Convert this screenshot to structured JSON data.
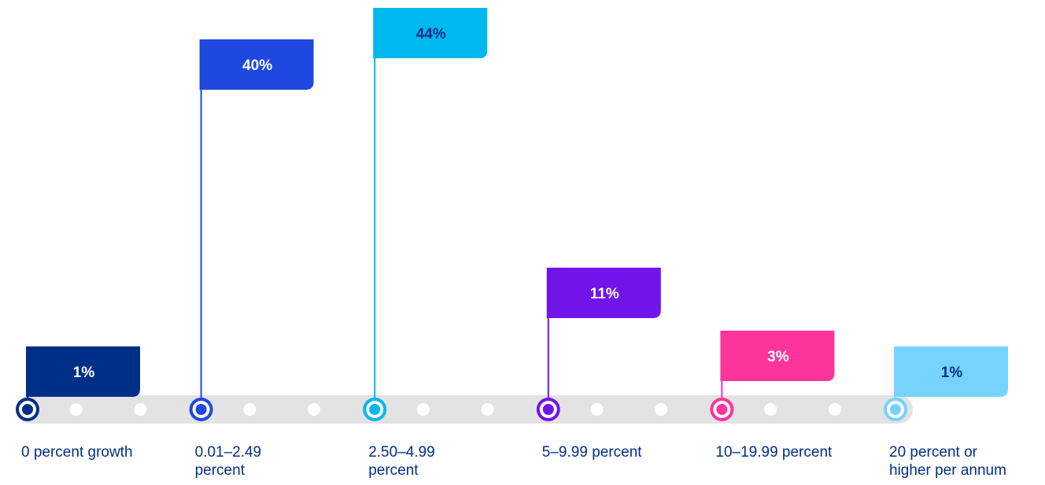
{
  "chart_data": {
    "type": "flag",
    "categories": [
      "0 percent growth",
      "0.01–2.49 percent",
      "2.50–4.99 percent",
      "5–9.99 percent",
      "10–19.99 percent",
      "20 percent or higher per annum"
    ],
    "values": [
      1,
      40,
      44,
      11,
      3,
      1
    ],
    "value_labels": [
      "1%",
      "40%",
      "44%",
      "11%",
      "3%",
      "1%"
    ],
    "colors": [
      "#002f87",
      "#1f48e0",
      "#00b8f0",
      "#7213ea",
      "#fd349c",
      "#76d2ff"
    ],
    "label_colors": [
      "#ffffff",
      "#ffffff",
      "#002f87",
      "#ffffff",
      "#ffffff",
      "#002f87"
    ],
    "ylim": [
      0,
      44
    ]
  }
}
